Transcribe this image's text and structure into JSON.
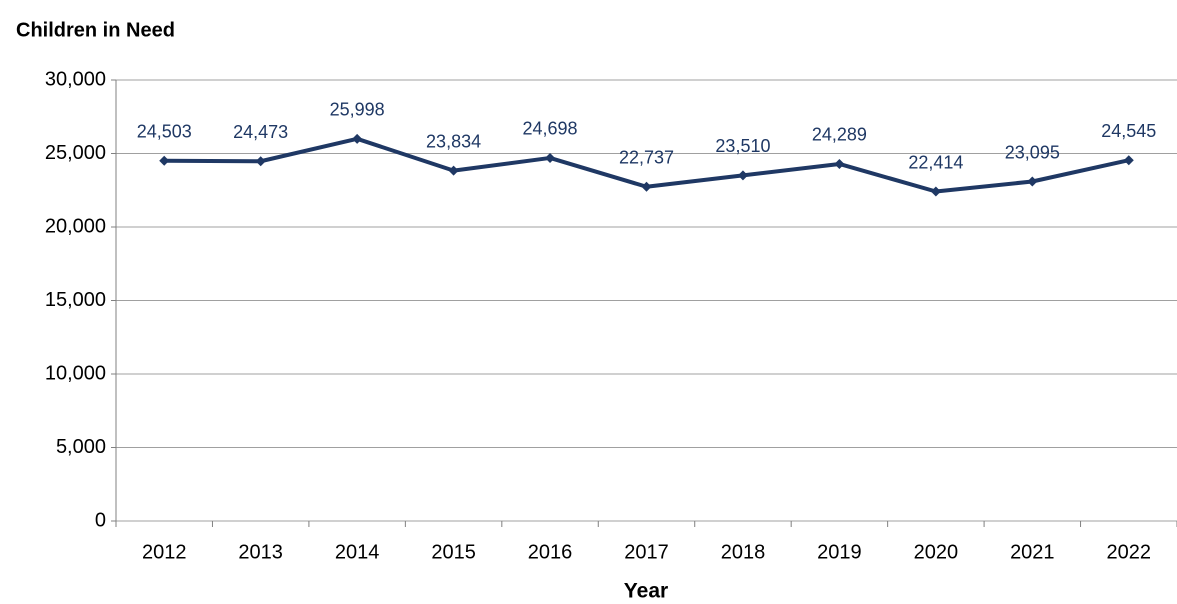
{
  "chart_data": {
    "type": "line",
    "title": "Children in Need",
    "x_label": "Year",
    "categories": [
      "2012",
      "2013",
      "2014",
      "2015",
      "2016",
      "2017",
      "2018",
      "2019",
      "2020",
      "2021",
      "2022"
    ],
    "values": [
      24503,
      24473,
      25998,
      23834,
      24698,
      22737,
      23510,
      24289,
      22414,
      23095,
      24545
    ],
    "value_labels": [
      "24,503",
      "24,473",
      "25,998",
      "23,834",
      "24,698",
      "22,737",
      "23,510",
      "24,289",
      "22,414",
      "23,095",
      "24,545"
    ],
    "color": "#1f3864",
    "ylim": [
      0,
      30000
    ],
    "yticks": [
      0,
      {
        "value": 5000,
        "label": "5,000"
      },
      {
        "value": 10000,
        "label": "10,000"
      },
      {
        "value": 15000,
        "label": "15,000"
      },
      {
        "value": 20000,
        "label": "20,000"
      },
      {
        "value": 25000,
        "label": "25,000"
      },
      {
        "value": 30000,
        "label": "30,000"
      }
    ],
    "grid": true
  }
}
